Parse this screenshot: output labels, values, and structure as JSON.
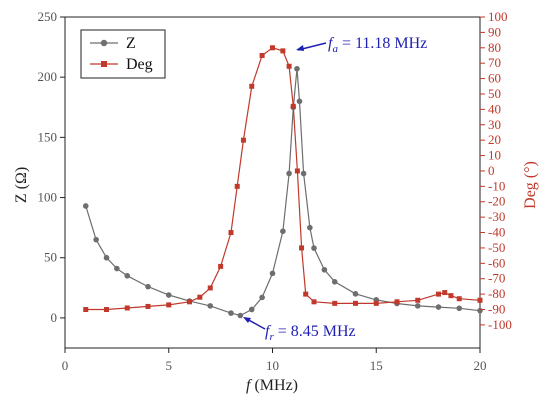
{
  "chart_data": {
    "type": "line",
    "xlabel_italic": "f",
    "xlabel_unit": " (MHz)",
    "ylabel": "Z (Ω)",
    "y2label": "Deg (°)",
    "xlim": [
      0,
      20
    ],
    "ylim": [
      -25,
      250
    ],
    "y2lim": [
      -115,
      100
    ],
    "x_ticks": [
      0,
      5,
      10,
      15,
      20
    ],
    "y_ticks": [
      0,
      50,
      100,
      150,
      200,
      250
    ],
    "y2_ticks": [
      -100,
      -90,
      -80,
      -70,
      -60,
      -50,
      -40,
      -30,
      -20,
      -10,
      0,
      10,
      20,
      30,
      40,
      50,
      60,
      70,
      80,
      90,
      100
    ],
    "grid": false,
    "legend_position": "top-left",
    "series": [
      {
        "name": "Z",
        "axis": "left",
        "color": "#6e6e6e",
        "marker": "circle",
        "x": [
          1.0,
          1.5,
          2.0,
          2.5,
          3.0,
          4.0,
          5.0,
          6.0,
          7.0,
          8.0,
          8.45,
          9.0,
          9.5,
          10.0,
          10.5,
          10.8,
          11.0,
          11.18,
          11.3,
          11.5,
          11.8,
          12.0,
          12.5,
          13.0,
          14.0,
          15.0,
          16.0,
          17.0,
          18.0,
          19.0,
          20.0
        ],
        "y": [
          93,
          65,
          50,
          41,
          35,
          26,
          19,
          14,
          10,
          4,
          2,
          7,
          17,
          37,
          72,
          120,
          175,
          207,
          180,
          120,
          75,
          58,
          40,
          30,
          20,
          15,
          12,
          10,
          9,
          8,
          6
        ]
      },
      {
        "name": "Deg",
        "axis": "right",
        "color": "#c0392b",
        "marker": "square",
        "x": [
          1.0,
          2.0,
          3.0,
          4.0,
          5.0,
          6.0,
          6.5,
          7.0,
          7.5,
          8.0,
          8.3,
          8.6,
          9.0,
          9.5,
          10.0,
          10.5,
          10.8,
          11.0,
          11.2,
          11.4,
          11.6,
          12.0,
          13.0,
          14.0,
          15.0,
          16.0,
          17.0,
          18.0,
          18.3,
          18.6,
          19.0,
          20.0
        ],
        "y": [
          -90,
          -90,
          -89,
          -88,
          -87,
          -85,
          -82,
          -76,
          -62,
          -40,
          -10,
          20,
          55,
          75,
          80,
          78,
          68,
          42,
          0,
          -50,
          -80,
          -85,
          -86,
          -86,
          -86,
          -85,
          -84,
          -80,
          -79,
          -81,
          -83,
          -84
        ]
      }
    ],
    "annotations": [
      {
        "italic": "f",
        "sub": "a",
        "text": " = 11.18 MHz",
        "x": 11.18,
        "y": 207,
        "axis": "left"
      },
      {
        "italic": "f",
        "sub": "r",
        "text": " = 8.45 MHz",
        "x": 8.45,
        "y": 2,
        "axis": "left"
      }
    ]
  }
}
